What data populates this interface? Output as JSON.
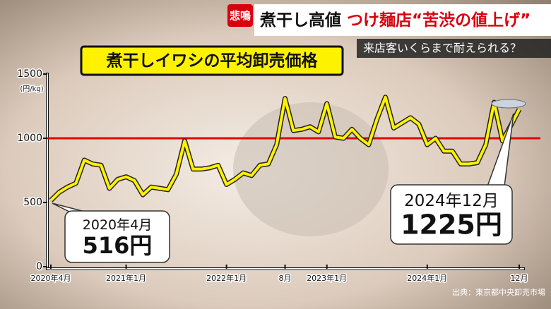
{
  "header": {
    "badge": "悲鳴",
    "headline": "煮干し高値",
    "headline_red": "つけ麺店“苦渋の値上げ”",
    "subline": "来店客いくらまで耐えられる？"
  },
  "chart_data": {
    "type": "line",
    "title": "煮干しイワシの平均卸売価格",
    "ylabel": "(円/kg)",
    "categories": [
      "2020年4月",
      null,
      null,
      null,
      null,
      null,
      null,
      null,
      null,
      "2021年1月",
      null,
      null,
      null,
      null,
      null,
      null,
      null,
      null,
      null,
      null,
      null,
      "2022年1月",
      null,
      null,
      null,
      null,
      null,
      null,
      "8月",
      null,
      null,
      null,
      null,
      "2023年1月",
      null,
      null,
      null,
      null,
      null,
      null,
      null,
      null,
      null,
      null,
      null,
      "2024年1月",
      null,
      null,
      null,
      null,
      null,
      null,
      null,
      null,
      null,
      null,
      "12月"
    ],
    "series": [
      {
        "name": "煮干しイワシ",
        "color": "#fff200",
        "values": [
          516,
          580,
          620,
          650,
          830,
          800,
          790,
          610,
          680,
          700,
          670,
          560,
          620,
          610,
          600,
          720,
          980,
          760,
          760,
          770,
          790,
          640,
          680,
          730,
          710,
          790,
          800,
          950,
          1310,
          1060,
          1070,
          1090,
          1050,
          1270,
          1010,
          1000,
          1070,
          1000,
          950,
          1150,
          1320,
          1080,
          1120,
          1160,
          1110,
          950,
          1000,
          900,
          900,
          800,
          800,
          810,
          950,
          1280,
          980,
          1100,
          1225
        ],
        "value_labels": [
          "516円",
          null,
          null,
          null,
          null,
          null,
          null,
          null,
          null,
          null,
          null,
          null,
          null,
          null,
          null,
          null,
          null,
          null,
          null,
          null,
          null,
          null,
          null,
          null,
          null,
          null,
          null,
          null,
          null,
          null,
          null,
          null,
          null,
          null,
          null,
          null,
          null,
          null,
          null,
          null,
          null,
          null,
          null,
          null,
          null,
          null,
          null,
          null,
          null,
          null,
          null,
          null,
          null,
          null,
          null,
          null,
          "1225円"
        ]
      }
    ],
    "annotations": [
      "2020年4月",
      "2024年12月"
    ],
    "reference_line": {
      "value": 1000,
      "color": "#e60000"
    },
    "ylim": [
      0,
      1500
    ],
    "yticks": [
      0,
      500,
      1000,
      1500
    ],
    "source": "出典：東京都中央卸売市場"
  }
}
